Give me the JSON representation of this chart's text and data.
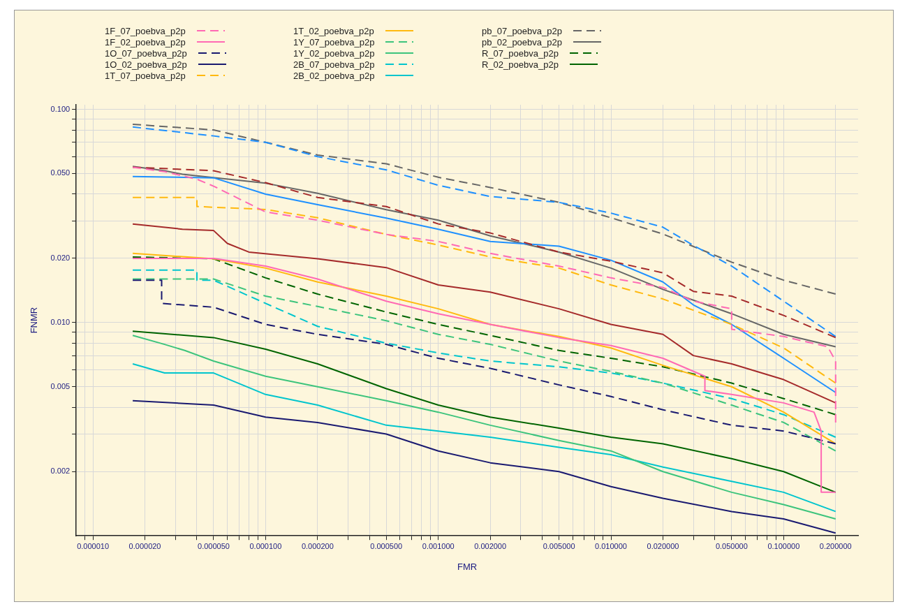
{
  "chart_data": {
    "type": "line",
    "xlabel": "FMR",
    "ylabel": "FNMR",
    "log": "xy",
    "grid": true,
    "legend": "top",
    "marker": "none",
    "xlim": [
      8e-06,
      0.27
    ],
    "ylim": [
      0.001,
      0.105
    ],
    "xticks": [
      {
        "value": 9e-06,
        "label": null
      },
      {
        "value": 1e-05,
        "label": "0.000010"
      },
      {
        "value": 2e-05,
        "label": "0.000020"
      },
      {
        "value": 3e-05,
        "label": null
      },
      {
        "value": 4e-05,
        "label": null
      },
      {
        "value": 5e-05,
        "label": "0.000050"
      },
      {
        "value": 6e-05,
        "label": null
      },
      {
        "value": 7e-05,
        "label": null
      },
      {
        "value": 8e-05,
        "label": null
      },
      {
        "value": 9e-05,
        "label": null
      },
      {
        "value": 0.0001,
        "label": "0.000100"
      },
      {
        "value": 0.0002,
        "label": "0.000200"
      },
      {
        "value": 0.0003,
        "label": null
      },
      {
        "value": 0.0004,
        "label": null
      },
      {
        "value": 0.0005,
        "label": "0.000500"
      },
      {
        "value": 0.0006,
        "label": null
      },
      {
        "value": 0.0007,
        "label": null
      },
      {
        "value": 0.0008,
        "label": null
      },
      {
        "value": 0.0009,
        "label": null
      },
      {
        "value": 0.001,
        "label": "0.001000"
      },
      {
        "value": 0.002,
        "label": "0.002000"
      },
      {
        "value": 0.003,
        "label": null
      },
      {
        "value": 0.004,
        "label": null
      },
      {
        "value": 0.005,
        "label": "0.005000"
      },
      {
        "value": 0.006,
        "label": null
      },
      {
        "value": 0.007,
        "label": null
      },
      {
        "value": 0.008,
        "label": null
      },
      {
        "value": 0.009,
        "label": null
      },
      {
        "value": 0.01,
        "label": "0.010000"
      },
      {
        "value": 0.02,
        "label": "0.020000"
      },
      {
        "value": 0.03,
        "label": null
      },
      {
        "value": 0.04,
        "label": null
      },
      {
        "value": 0.05,
        "label": "0.050000"
      },
      {
        "value": 0.06,
        "label": null
      },
      {
        "value": 0.07,
        "label": null
      },
      {
        "value": 0.08,
        "label": null
      },
      {
        "value": 0.09,
        "label": null
      },
      {
        "value": 0.1,
        "label": "0.100000"
      },
      {
        "value": 0.2,
        "label": "0.200000"
      }
    ],
    "yticks": [
      {
        "value": 0.002,
        "label": "0.002"
      },
      {
        "value": 0.003,
        "label": null
      },
      {
        "value": 0.004,
        "label": null
      },
      {
        "value": 0.005,
        "label": "0.005"
      },
      {
        "value": 0.006,
        "label": null
      },
      {
        "value": 0.007,
        "label": null
      },
      {
        "value": 0.008,
        "label": null
      },
      {
        "value": 0.009,
        "label": null
      },
      {
        "value": 0.01,
        "label": "0.010"
      },
      {
        "value": 0.02,
        "label": "0.020"
      },
      {
        "value": 0.03,
        "label": null
      },
      {
        "value": 0.04,
        "label": null
      },
      {
        "value": 0.05,
        "label": "0.050"
      },
      {
        "value": 0.06,
        "label": null
      },
      {
        "value": 0.07,
        "label": null
      },
      {
        "value": 0.08,
        "label": null
      },
      {
        "value": 0.09,
        "label": null
      },
      {
        "value": 0.1,
        "label": "0.100"
      }
    ],
    "series": [
      {
        "name": "1F_07_poebva_p2p",
        "color": "#ff69b4",
        "line_style": "dashed",
        "x": [
          1.7e-05,
          2.6e-05,
          4e-05,
          5e-05,
          0.0001,
          0.0002,
          0.0005,
          0.001,
          0.002,
          0.005,
          0.01,
          0.02,
          0.03,
          0.05,
          0.05,
          0.1,
          0.18,
          0.2,
          0.2
        ],
        "values": [
          0.0535,
          0.051,
          0.047,
          0.0436,
          0.033,
          0.0302,
          0.0259,
          0.024,
          0.0211,
          0.0184,
          0.0162,
          0.0146,
          0.0126,
          0.0116,
          0.0093,
          0.0086,
          0.0077,
          0.0066,
          0.0034
        ]
      },
      {
        "name": "1F_02_poebva_p2p",
        "color": "#ff69b4",
        "line_style": "solid",
        "x": [
          1.7e-05,
          5e-05,
          0.0001,
          0.0002,
          0.0005,
          0.001,
          0.002,
          0.005,
          0.01,
          0.02,
          0.035,
          0.035,
          0.05,
          0.1,
          0.15,
          0.165,
          0.165,
          0.2
        ],
        "values": [
          0.02,
          0.02,
          0.0184,
          0.016,
          0.0126,
          0.011,
          0.0098,
          0.0085,
          0.0078,
          0.0068,
          0.0056,
          0.0048,
          0.0046,
          0.0042,
          0.0038,
          0.0031,
          0.0016,
          0.0016
        ]
      },
      {
        "name": "1O_07_poebva_p2p",
        "color": "#191970",
        "line_style": "dashed",
        "x": [
          1.7e-05,
          2.5e-05,
          2.5e-05,
          5e-05,
          0.0001,
          0.0002,
          0.0005,
          0.001,
          0.002,
          0.005,
          0.01,
          0.02,
          0.05,
          0.1,
          0.2
        ],
        "values": [
          0.0158,
          0.0158,
          0.0123,
          0.0118,
          0.0098,
          0.0088,
          0.0079,
          0.0068,
          0.0061,
          0.0051,
          0.0045,
          0.0039,
          0.0033,
          0.0031,
          0.0027
        ]
      },
      {
        "name": "1O_02_poebva_p2p",
        "color": "#191970",
        "line_style": "solid",
        "x": [
          1.7e-05,
          5e-05,
          0.0001,
          0.0002,
          0.0005,
          0.001,
          0.002,
          0.005,
          0.01,
          0.02,
          0.05,
          0.1,
          0.2
        ],
        "values": [
          0.0043,
          0.0041,
          0.0036,
          0.0034,
          0.003,
          0.0025,
          0.0022,
          0.002,
          0.0017,
          0.0015,
          0.0013,
          0.0012,
          0.00103
        ]
      },
      {
        "name": "1T_07_poebva_p2p",
        "color": "#ffb90f",
        "line_style": "dashed",
        "x": [
          1.7e-05,
          4e-05,
          4e-05,
          0.0001,
          0.0002,
          0.0005,
          0.001,
          0.002,
          0.005,
          0.01,
          0.02,
          0.05,
          0.1,
          0.2
        ],
        "values": [
          0.0386,
          0.0386,
          0.035,
          0.0339,
          0.031,
          0.0259,
          0.0231,
          0.0203,
          0.018,
          0.015,
          0.0129,
          0.0098,
          0.0076,
          0.0052
        ]
      },
      {
        "name": "1T_02_poebva_p2p",
        "color": "#ffb90f",
        "line_style": "solid",
        "x": [
          1.7e-05,
          5e-05,
          0.0001,
          0.0002,
          0.0005,
          0.001,
          0.002,
          0.005,
          0.01,
          0.02,
          0.05,
          0.1,
          0.2
        ],
        "values": [
          0.0211,
          0.0199,
          0.018,
          0.0155,
          0.0133,
          0.0116,
          0.0098,
          0.0086,
          0.0076,
          0.0063,
          0.005,
          0.0038,
          0.0027
        ]
      },
      {
        "name": "1Y_07_poebva_p2p",
        "color": "#3cc47c",
        "line_style": "dashed",
        "x": [
          1.7e-05,
          5e-05,
          0.0001,
          0.0002,
          0.0005,
          0.001,
          0.002,
          0.005,
          0.01,
          0.02,
          0.05,
          0.1,
          0.2
        ],
        "values": [
          0.016,
          0.016,
          0.0133,
          0.0119,
          0.0102,
          0.0088,
          0.0079,
          0.0066,
          0.0059,
          0.0052,
          0.0041,
          0.0034,
          0.0025
        ]
      },
      {
        "name": "1Y_02_poebva_p2p",
        "color": "#3cc47c",
        "line_style": "solid",
        "x": [
          1.7e-05,
          2.6e-05,
          3.4e-05,
          5e-05,
          0.0001,
          0.0002,
          0.0005,
          0.001,
          0.002,
          0.005,
          0.01,
          0.02,
          0.05,
          0.1,
          0.2
        ],
        "values": [
          0.0087,
          0.0079,
          0.0074,
          0.0066,
          0.0056,
          0.005,
          0.0043,
          0.0038,
          0.0033,
          0.0028,
          0.0025,
          0.002,
          0.0016,
          0.0014,
          0.0012
        ]
      },
      {
        "name": "2B_07_poebva_p2p",
        "color": "#00c5cd",
        "line_style": "dashed",
        "x": [
          1.7e-05,
          4e-05,
          4e-05,
          5e-05,
          0.0001,
          0.0002,
          0.0005,
          0.001,
          0.002,
          0.005,
          0.01,
          0.02,
          0.05,
          0.1,
          0.2
        ],
        "values": [
          0.0176,
          0.0176,
          0.0158,
          0.0158,
          0.0123,
          0.0096,
          0.008,
          0.0072,
          0.0066,
          0.0062,
          0.0058,
          0.0052,
          0.0044,
          0.0037,
          0.0029
        ]
      },
      {
        "name": "2B_02_poebva_p2p",
        "color": "#00c5cd",
        "line_style": "solid",
        "x": [
          1.7e-05,
          2.6e-05,
          5e-05,
          0.0001,
          0.0002,
          0.0005,
          0.001,
          0.002,
          0.005,
          0.01,
          0.02,
          0.05,
          0.1,
          0.2
        ],
        "values": [
          0.0064,
          0.0058,
          0.0058,
          0.0046,
          0.0041,
          0.0033,
          0.0031,
          0.0029,
          0.0026,
          0.0024,
          0.0021,
          0.0018,
          0.0016,
          0.0013
        ]
      },
      {
        "color": "#a52a2a",
        "line_style": "dashed",
        "x": [
          1.7e-05,
          5e-05,
          0.0001,
          0.0002,
          0.0005,
          0.001,
          0.002,
          0.005,
          0.01,
          0.02,
          0.03,
          0.05,
          0.1,
          0.2
        ],
        "values": [
          0.0535,
          0.0515,
          0.0453,
          0.0386,
          0.035,
          0.029,
          0.0263,
          0.0214,
          0.0194,
          0.0171,
          0.014,
          0.0133,
          0.0108,
          0.0085
        ]
      },
      {
        "color": "#a52a2a",
        "line_style": "solid",
        "x": [
          1.7e-05,
          3.3e-05,
          5e-05,
          6e-05,
          8e-05,
          0.0002,
          0.0005,
          0.001,
          0.002,
          0.005,
          0.01,
          0.02,
          0.03,
          0.05,
          0.1,
          0.2
        ],
        "values": [
          0.029,
          0.0274,
          0.027,
          0.0235,
          0.0214,
          0.0199,
          0.0181,
          0.015,
          0.0139,
          0.0116,
          0.0098,
          0.0088,
          0.007,
          0.0064,
          0.0054,
          0.0042
        ]
      },
      {
        "color": "#1e90ff",
        "line_style": "dashed",
        "x": [
          1.7e-05,
          5e-05,
          0.0001,
          0.0002,
          0.0005,
          0.001,
          0.002,
          0.005,
          0.01,
          0.02,
          0.03,
          0.05,
          0.1,
          0.2
        ],
        "values": [
          0.0826,
          0.075,
          0.07,
          0.06,
          0.052,
          0.044,
          0.039,
          0.0366,
          0.0326,
          0.028,
          0.023,
          0.0184,
          0.0126,
          0.0086
        ]
      },
      {
        "color": "#1e90ff",
        "line_style": "solid",
        "x": [
          1.7e-05,
          5e-05,
          0.0001,
          0.0002,
          0.0005,
          0.001,
          0.002,
          0.005,
          0.01,
          0.02,
          0.03,
          0.05,
          0.1,
          0.2
        ],
        "values": [
          0.0484,
          0.0477,
          0.04,
          0.0357,
          0.0309,
          0.0274,
          0.024,
          0.0228,
          0.0196,
          0.0155,
          0.0121,
          0.0098,
          0.0068,
          0.0047
        ]
      },
      {
        "name": "pb_07_poebva_p2p",
        "color": "#666666",
        "line_style": "dashed",
        "x": [
          1.7e-05,
          5e-05,
          0.0001,
          0.0002,
          0.0005,
          0.001,
          0.002,
          0.005,
          0.01,
          0.02,
          0.05,
          0.1,
          0.2
        ],
        "values": [
          0.085,
          0.08,
          0.07,
          0.061,
          0.0555,
          0.048,
          0.043,
          0.0366,
          0.031,
          0.026,
          0.0192,
          0.0158,
          0.0136
        ]
      },
      {
        "name": "pb_02_poebva_p2p",
        "color": "#666666",
        "line_style": "solid",
        "x": [
          1.7e-05,
          2.6e-05,
          3.3e-05,
          0.0001,
          0.0002,
          0.0005,
          0.001,
          0.002,
          0.005,
          0.01,
          0.02,
          0.05,
          0.1,
          0.2
        ],
        "values": [
          0.054,
          0.0515,
          0.0496,
          0.045,
          0.0404,
          0.0338,
          0.0302,
          0.0255,
          0.0214,
          0.018,
          0.0143,
          0.011,
          0.0088,
          0.0077
        ]
      },
      {
        "name": "R_07_poebva_p2p",
        "color": "#006400",
        "line_style": "dashed",
        "x": [
          1.7e-05,
          5e-05,
          0.0001,
          0.0002,
          0.0005,
          0.001,
          0.002,
          0.005,
          0.01,
          0.02,
          0.05,
          0.1,
          0.2
        ],
        "values": [
          0.0203,
          0.0199,
          0.0162,
          0.0136,
          0.0112,
          0.0098,
          0.0087,
          0.0074,
          0.0068,
          0.0062,
          0.0052,
          0.0044,
          0.0037
        ]
      },
      {
        "name": "R_02_poebva_p2p",
        "color": "#006400",
        "line_style": "solid",
        "x": [
          1.7e-05,
          5e-05,
          0.0001,
          0.0002,
          0.0005,
          0.001,
          0.002,
          0.005,
          0.01,
          0.02,
          0.05,
          0.1,
          0.2
        ],
        "values": [
          0.0091,
          0.0085,
          0.0075,
          0.0064,
          0.0049,
          0.0041,
          0.0036,
          0.0032,
          0.0029,
          0.0027,
          0.0023,
          0.002,
          0.0016
        ]
      }
    ]
  }
}
